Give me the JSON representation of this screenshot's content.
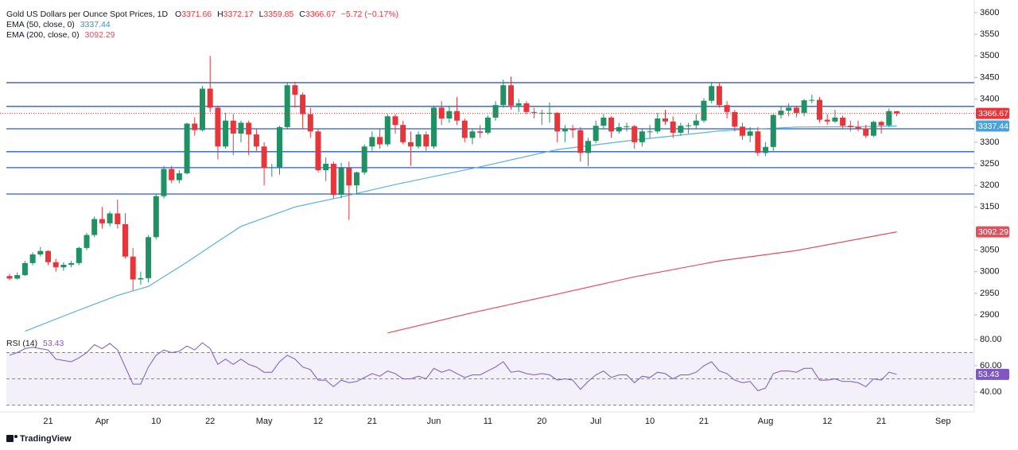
{
  "chart_data": {
    "type": "candlestick",
    "title": "Gold US Dollars per Ounce Spot Prices, 1D",
    "ohlc_labels": [
      "O",
      "H",
      "L",
      "C"
    ],
    "change_label": "−5.72 (−0.17%)",
    "up_color": "#1f9163",
    "down_color": "#e8353a",
    "categories": [
      null,
      null,
      null,
      null,
      null,
      "21",
      null,
      null,
      null,
      null,
      null,
      null,
      "Apr",
      null,
      null,
      null,
      null,
      null,
      null,
      "10",
      null,
      null,
      null,
      null,
      null,
      null,
      "22",
      null,
      null,
      null,
      null,
      null,
      null,
      "May",
      null,
      null,
      null,
      null,
      null,
      null,
      "12",
      null,
      null,
      null,
      null,
      null,
      null,
      "21",
      null,
      null,
      null,
      null,
      null,
      null,
      null,
      "Jun",
      null,
      null,
      null,
      null,
      null,
      null,
      "11",
      null,
      null,
      null,
      null,
      null,
      null,
      "20",
      null,
      null,
      null,
      null,
      null,
      null,
      "Jul",
      null,
      null,
      null,
      null,
      null,
      null,
      "10",
      null,
      null,
      null,
      null,
      null,
      null,
      "21",
      null,
      null,
      null,
      null,
      null,
      null,
      null,
      "Aug",
      null,
      null,
      null,
      null,
      null,
      null,
      null,
      "12",
      null,
      null,
      null,
      null,
      null,
      null,
      "21",
      null,
      null,
      null,
      null,
      null,
      null,
      null,
      "Sep"
    ],
    "ohlc": [
      [
        2990,
        2995,
        2980,
        2984
      ],
      [
        2984,
        2998,
        2982,
        2992
      ],
      [
        2992,
        3025,
        2990,
        3020
      ],
      [
        3020,
        3045,
        3015,
        3040
      ],
      [
        3040,
        3057,
        3035,
        3048
      ],
      [
        3048,
        3050,
        3015,
        3022
      ],
      [
        3022,
        3030,
        3000,
        3010
      ],
      [
        3010,
        3022,
        3002,
        3016
      ],
      [
        3016,
        3025,
        3010,
        3020
      ],
      [
        3020,
        3058,
        3015,
        3055
      ],
      [
        3055,
        3090,
        3050,
        3085
      ],
      [
        3085,
        3128,
        3080,
        3122
      ],
      [
        3122,
        3150,
        3100,
        3112
      ],
      [
        3112,
        3140,
        3105,
        3135
      ],
      [
        3135,
        3167,
        3100,
        3110
      ],
      [
        3110,
        3135,
        3030,
        3035
      ],
      [
        3035,
        3055,
        2957,
        2982
      ],
      [
        2982,
        3000,
        2970,
        2985
      ],
      [
        2985,
        3085,
        2975,
        3080
      ],
      [
        3080,
        3180,
        3075,
        3175
      ],
      [
        3175,
        3245,
        3170,
        3238
      ],
      [
        3238,
        3245,
        3205,
        3212
      ],
      [
        3212,
        3235,
        3205,
        3228
      ],
      [
        3228,
        3345,
        3225,
        3343
      ],
      [
        3343,
        3358,
        3315,
        3328
      ],
      [
        3328,
        3430,
        3325,
        3424
      ],
      [
        3424,
        3500,
        3370,
        3380
      ],
      [
        3380,
        3385,
        3260,
        3290
      ],
      [
        3290,
        3368,
        3285,
        3350
      ],
      [
        3350,
        3365,
        3270,
        3320
      ],
      [
        3320,
        3350,
        3300,
        3345
      ],
      [
        3345,
        3350,
        3270,
        3318
      ],
      [
        3318,
        3330,
        3280,
        3290
      ],
      [
        3290,
        3300,
        3200,
        3240
      ],
      [
        3240,
        3250,
        3220,
        3242
      ],
      [
        3242,
        3338,
        3225,
        3335
      ],
      [
        3335,
        3438,
        3330,
        3432
      ],
      [
        3432,
        3440,
        3380,
        3410
      ],
      [
        3410,
        3415,
        3330,
        3365
      ],
      [
        3365,
        3380,
        3310,
        3325
      ],
      [
        3325,
        3330,
        3230,
        3235
      ],
      [
        3235,
        3265,
        3210,
        3250
      ],
      [
        3250,
        3255,
        3170,
        3178
      ],
      [
        3178,
        3252,
        3170,
        3240
      ],
      [
        3240,
        3255,
        3120,
        3200
      ],
      [
        3200,
        3232,
        3180,
        3230
      ],
      [
        3230,
        3295,
        3225,
        3290
      ],
      [
        3290,
        3325,
        3280,
        3312
      ],
      [
        3312,
        3330,
        3285,
        3295
      ],
      [
        3295,
        3365,
        3290,
        3360
      ],
      [
        3360,
        3365,
        3320,
        3340
      ],
      [
        3340,
        3350,
        3295,
        3300
      ],
      [
        3300,
        3325,
        3245,
        3290
      ],
      [
        3290,
        3325,
        3285,
        3318
      ],
      [
        3318,
        3325,
        3280,
        3290
      ],
      [
        3290,
        3385,
        3285,
        3380
      ],
      [
        3380,
        3395,
        3340,
        3355
      ],
      [
        3355,
        3385,
        3345,
        3372
      ],
      [
        3372,
        3405,
        3340,
        3350
      ],
      [
        3350,
        3355,
        3300,
        3310
      ],
      [
        3310,
        3330,
        3295,
        3325
      ],
      [
        3325,
        3340,
        3310,
        3322
      ],
      [
        3322,
        3362,
        3318,
        3357
      ],
      [
        3357,
        3395,
        3350,
        3386
      ],
      [
        3386,
        3445,
        3380,
        3432
      ],
      [
        3432,
        3452,
        3375,
        3385
      ],
      [
        3385,
        3400,
        3370,
        3390
      ],
      [
        3390,
        3395,
        3365,
        3370
      ],
      [
        3370,
        3380,
        3355,
        3368
      ],
      [
        3368,
        3375,
        3340,
        3368
      ],
      [
        3368,
        3392,
        3345,
        3368
      ],
      [
        3368,
        3370,
        3300,
        3325
      ],
      [
        3325,
        3340,
        3300,
        3332
      ],
      [
        3332,
        3340,
        3310,
        3328
      ],
      [
        3328,
        3335,
        3255,
        3275
      ],
      [
        3275,
        3310,
        3245,
        3303
      ],
      [
        3303,
        3350,
        3298,
        3338
      ],
      [
        3338,
        3365,
        3330,
        3357
      ],
      [
        3357,
        3360,
        3310,
        3325
      ],
      [
        3325,
        3345,
        3320,
        3335
      ],
      [
        3335,
        3345,
        3325,
        3337
      ],
      [
        3337,
        3340,
        3285,
        3300
      ],
      [
        3300,
        3330,
        3290,
        3325
      ],
      [
        3325,
        3340,
        3310,
        3325
      ],
      [
        3325,
        3368,
        3320,
        3355
      ],
      [
        3355,
        3375,
        3340,
        3348
      ],
      [
        3348,
        3360,
        3310,
        3322
      ],
      [
        3322,
        3345,
        3315,
        3338
      ],
      [
        3338,
        3345,
        3320,
        3339
      ],
      [
        3339,
        3365,
        3330,
        3350
      ],
      [
        3350,
        3402,
        3345,
        3396
      ],
      [
        3396,
        3440,
        3390,
        3430
      ],
      [
        3430,
        3438,
        3380,
        3386
      ],
      [
        3386,
        3395,
        3355,
        3370
      ],
      [
        3370,
        3375,
        3325,
        3336
      ],
      [
        3336,
        3345,
        3305,
        3315
      ],
      [
        3315,
        3335,
        3300,
        3325
      ],
      [
        3325,
        3335,
        3268,
        3275
      ],
      [
        3275,
        3300,
        3268,
        3289
      ],
      [
        3289,
        3365,
        3280,
        3363
      ],
      [
        3363,
        3385,
        3355,
        3373
      ],
      [
        3373,
        3390,
        3360,
        3380
      ],
      [
        3380,
        3385,
        3358,
        3368
      ],
      [
        3368,
        3400,
        3360,
        3397
      ],
      [
        3397,
        3410,
        3390,
        3398
      ],
      [
        3398,
        3405,
        3345,
        3352
      ],
      [
        3352,
        3365,
        3340,
        3348
      ],
      [
        3348,
        3375,
        3345,
        3357
      ],
      [
        3357,
        3362,
        3330,
        3338
      ],
      [
        3338,
        3350,
        3325,
        3335
      ],
      [
        3335,
        3350,
        3325,
        3332
      ],
      [
        3332,
        3340,
        3310,
        3315
      ],
      [
        3315,
        3350,
        3312,
        3347
      ],
      [
        3347,
        3350,
        3320,
        3339
      ],
      [
        3339,
        3378,
        3335,
        3372
      ],
      [
        3371.66,
        3372.17,
        3359.85,
        3366.67
      ],
      null,
      null,
      null,
      null,
      null,
      null
    ],
    "ylim": [
      2855.8,
      3614.7
    ],
    "yticks": [
      3600,
      3550,
      3500,
      3450,
      3400,
      3300,
      3250,
      3200,
      3150,
      3050,
      3000,
      2950,
      2900
    ],
    "levels": [
      3438,
      3383,
      3331,
      3278,
      3241,
      3180
    ],
    "level_color": "#2a5bd7",
    "series": [
      {
        "name": "EMA (50, close, 0)",
        "color": "#5ab0dd",
        "x": [
          2,
          9,
          14,
          18,
          23,
          27,
          30,
          37,
          43,
          50,
          61,
          71,
          81,
          92,
          102,
          110,
          115
        ],
        "values": [
          2862,
          2911,
          2945,
          2966,
          3022,
          3070,
          3105,
          3150,
          3173,
          3202,
          3243,
          3283,
          3305,
          3326,
          3335,
          3336,
          3337.44
        ]
      },
      {
        "name": "EMA (200, close, 0)",
        "color": "#e0505c",
        "x": [
          49,
          60,
          71,
          81,
          92,
          102,
          115
        ],
        "values": [
          2858,
          2905,
          2948,
          2988,
          3025,
          3049,
          3092.29
        ]
      }
    ],
    "rsi": {
      "name": "RSI (14)",
      "color": "#7e57c2",
      "values": [
        68,
        70,
        73,
        74,
        73,
        72,
        65,
        64,
        63,
        66,
        70,
        76,
        73,
        77,
        72,
        59,
        46,
        46,
        59,
        68,
        72,
        70,
        71,
        75,
        72,
        77.5,
        73,
        61,
        65,
        61,
        65,
        61,
        59,
        55,
        55,
        63,
        68,
        65,
        59,
        57,
        49,
        49,
        44,
        49,
        47,
        48,
        51,
        54,
        52,
        56,
        54,
        50,
        50,
        52,
        50,
        58,
        55,
        57,
        54,
        51,
        53,
        53,
        56,
        59,
        63,
        55,
        56,
        54,
        53,
        54,
        53,
        49,
        50,
        49,
        42,
        48,
        53,
        56,
        51,
        53,
        53,
        47,
        52,
        51,
        55,
        54,
        50,
        53,
        53,
        55,
        60,
        63,
        56,
        54,
        49,
        47,
        48,
        41,
        43,
        54,
        56,
        56,
        55,
        58,
        58,
        49,
        49,
        50,
        48,
        48,
        47,
        44,
        50,
        49,
        55,
        53.43,
        null,
        null,
        null,
        null,
        null,
        null
      ],
      "ylim": [
        28.5,
        84.2
      ],
      "yticks": [
        {
          "value": 80,
          "label": "80.00"
        },
        {
          "value": 60,
          "label": "60.00"
        },
        {
          "value": 40,
          "label": "40.00"
        }
      ],
      "levels": [
        70,
        50,
        30
      ]
    }
  },
  "branding": "TradingView"
}
